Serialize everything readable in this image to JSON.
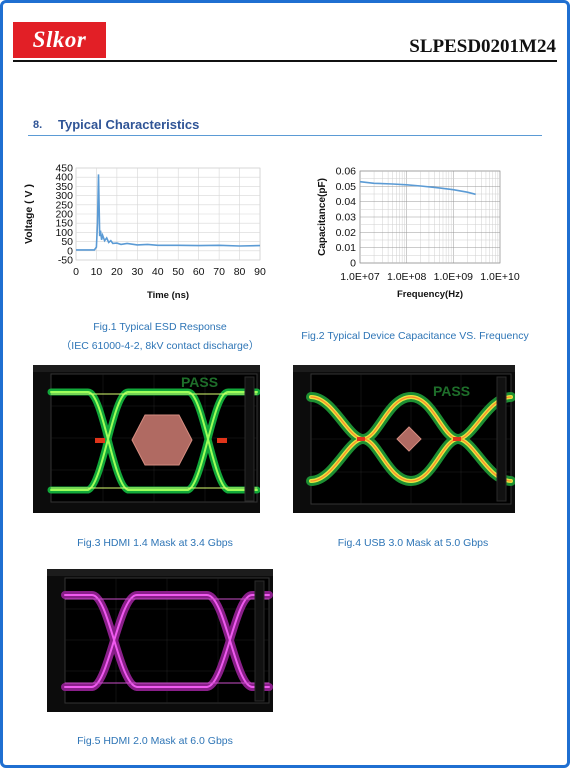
{
  "header": {
    "logo_text": "Slkor",
    "part_number": "SLPESD0201M24"
  },
  "section": {
    "number": "8.",
    "title": "Typical Characteristics"
  },
  "figures": {
    "fig1_caption_line1": "Fig.1 Typical ESD Response",
    "fig1_caption_line2": "（IEC 61000-4-2, 8kV contact discharge）",
    "fig2_caption": "Fig.2 Typical Device Capacitance VS. Frequency",
    "fig3_caption": "Fig.3 HDMI 1.4 Mask at 3.4 Gbps",
    "fig4_caption": "Fig.4 USB 3.0 Mask at 5.0 Gbps",
    "fig5_caption": "Fig.5 HDMI 2.0 Mask at 6.0 Gbps",
    "pass_label": "PASS"
  },
  "chart_data": [
    {
      "type": "line",
      "xlabel": "Time (ns)",
      "ylabel": "Voltage ( V )",
      "xlim": [
        0,
        90
      ],
      "ylim": [
        -50,
        450
      ],
      "xticks": [
        0,
        10,
        20,
        30,
        40,
        50,
        60,
        70,
        80,
        90
      ],
      "yticks": [
        -50,
        0,
        50,
        100,
        150,
        200,
        250,
        300,
        350,
        400,
        450
      ],
      "grid": true,
      "series": [
        {
          "x": [
            0,
            9,
            10,
            10.5,
            11,
            11.3,
            11.6,
            12,
            12.5,
            13,
            14,
            15,
            16,
            17,
            18,
            20,
            22,
            25,
            30,
            35,
            40,
            50,
            60,
            70,
            80,
            90
          ],
          "y": [
            5,
            5,
            20,
            150,
            415,
            250,
            80,
            110,
            60,
            85,
            55,
            70,
            45,
            55,
            40,
            42,
            35,
            40,
            32,
            35,
            30,
            30,
            28,
            30,
            26,
            28
          ]
        }
      ]
    },
    {
      "type": "line",
      "xlabel": "Frequency(Hz)",
      "ylabel": "Capacitance(pF)",
      "xscale": "log",
      "xlim": [
        10000000,
        10000000000
      ],
      "ylim": [
        0,
        0.06
      ],
      "xticks": [
        "1.0E+07",
        "1.0E+08",
        "1.0E+09",
        "1.0E+10"
      ],
      "yticks": [
        0,
        0.01,
        0.02,
        0.03,
        0.04,
        0.05,
        0.06
      ],
      "grid": true,
      "series": [
        {
          "x": [
            10000000,
            20000000,
            50000000,
            100000000,
            200000000,
            500000000,
            1000000000,
            2000000000,
            3000000000
          ],
          "y": [
            0.053,
            0.052,
            0.0515,
            0.051,
            0.0502,
            0.049,
            0.0478,
            0.0462,
            0.0448
          ]
        }
      ]
    }
  ]
}
